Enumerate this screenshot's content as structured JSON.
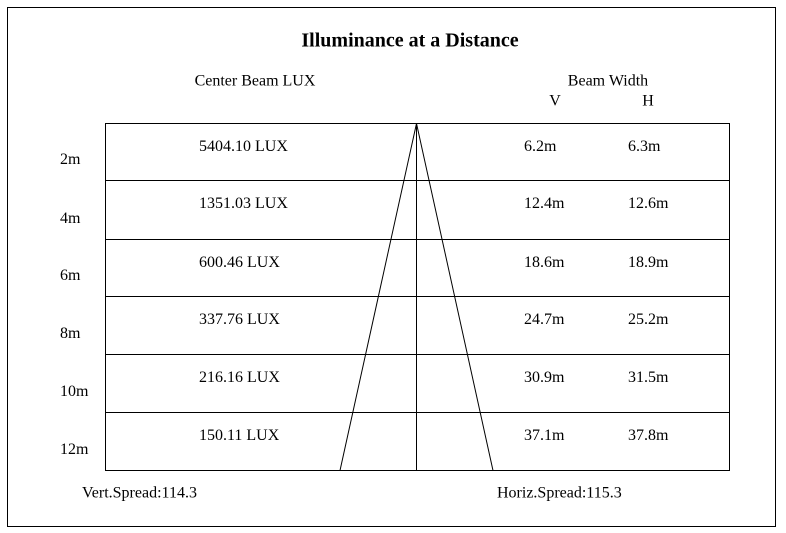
{
  "title": "Illuminance at a Distance",
  "headers": {
    "center": "Center Beam LUX",
    "beam_width": "Beam Width",
    "v": "V",
    "h": "H"
  },
  "rows": [
    {
      "distance": "2m",
      "lux": "5404.10 LUX",
      "v": "6.2m",
      "h": "6.3m"
    },
    {
      "distance": "4m",
      "lux": "1351.03 LUX",
      "v": "12.4m",
      "h": "12.6m"
    },
    {
      "distance": "6m",
      "lux": "600.46 LUX",
      "v": "18.6m",
      "h": "18.9m"
    },
    {
      "distance": "8m",
      "lux": "337.76 LUX",
      "v": "24.7m",
      "h": "25.2m"
    },
    {
      "distance": "10m",
      "lux": "216.16 LUX",
      "v": "30.9m",
      "h": "31.5m"
    },
    {
      "distance": "12m",
      "lux": "150.11 LUX",
      "v": "37.1m",
      "h": "37.8m"
    }
  ],
  "footer": {
    "vert": "Vert.Spread:114.3",
    "horiz": "Horiz.Spread:115.3"
  }
}
